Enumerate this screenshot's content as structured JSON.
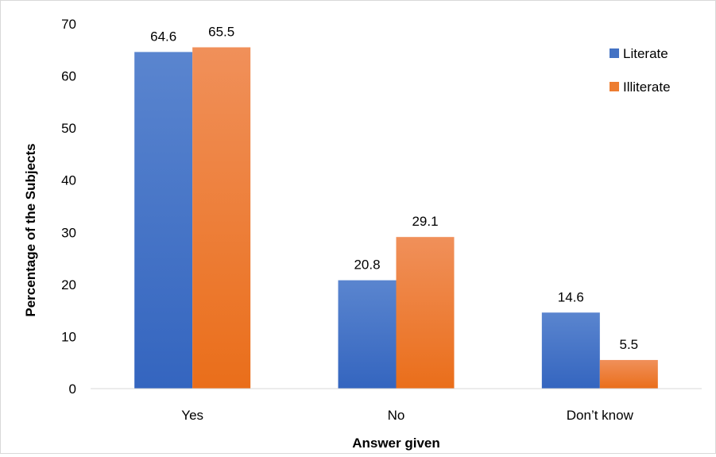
{
  "chart_data": {
    "type": "bar",
    "categories": [
      "Yes",
      "No",
      "Don’t know"
    ],
    "series": [
      {
        "name": "Literate",
        "values": [
          64.6,
          20.8,
          14.6
        ]
      },
      {
        "name": "Illiterate",
        "values": [
          65.5,
          29.1,
          5.5
        ]
      }
    ],
    "xlabel": "Answer given",
    "ylabel": "Percentage of the Subjects",
    "ylim": [
      0,
      70
    ],
    "yticks": [
      0,
      10,
      20,
      30,
      40,
      50,
      60,
      70
    ],
    "grid": false,
    "legend": "top-right",
    "colors": {
      "Literate": "#4472c4",
      "Illiterate": "#ed7d31"
    }
  }
}
